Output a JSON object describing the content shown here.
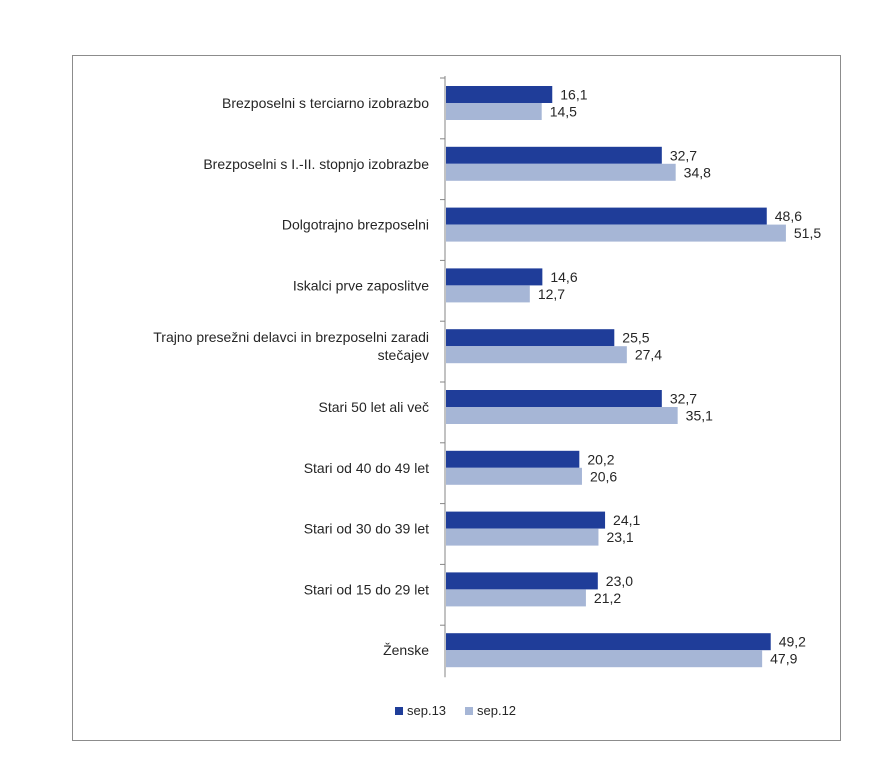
{
  "chart_data": {
    "type": "bar",
    "orientation": "horizontal",
    "categories": [
      [
        "Brezposelni s terciarno izobrazbo"
      ],
      [
        "Brezposelni s I.-II. stopnjo izobrazbe"
      ],
      [
        "Dolgotrajno brezposelni"
      ],
      [
        "Iskalci prve zaposlitve"
      ],
      [
        "Trajno presežni delavci in brezposelni zaradi",
        "stečajev"
      ],
      [
        "Stari 50 let ali več"
      ],
      [
        "Stari od 40 do 49 let"
      ],
      [
        "Stari od 30 do 39 let"
      ],
      [
        "Stari od 15 do 29 let"
      ],
      [
        "Ženske"
      ]
    ],
    "series": [
      {
        "name": "sep.13",
        "color": "#1f3d99",
        "values": [
          16.1,
          32.7,
          48.6,
          14.6,
          25.5,
          32.7,
          20.2,
          24.1,
          23.0,
          49.2
        ],
        "labels": [
          "16,1",
          "32,7",
          "48,6",
          "14,6",
          "25,5",
          "32,7",
          "20,2",
          "24,1",
          "23,0",
          "49,2"
        ]
      },
      {
        "name": "sep.12",
        "color": "#a6b6d6",
        "values": [
          14.5,
          34.8,
          51.5,
          12.7,
          27.4,
          35.1,
          20.6,
          23.1,
          21.2,
          47.9
        ],
        "labels": [
          "14,5",
          "34,8",
          "51,5",
          "12,7",
          "27,4",
          "35,1",
          "20,6",
          "23,1",
          "21,2",
          "47,9"
        ]
      }
    ],
    "xlim": [
      0,
      60
    ],
    "grid": false,
    "legend_position": "bottom"
  }
}
